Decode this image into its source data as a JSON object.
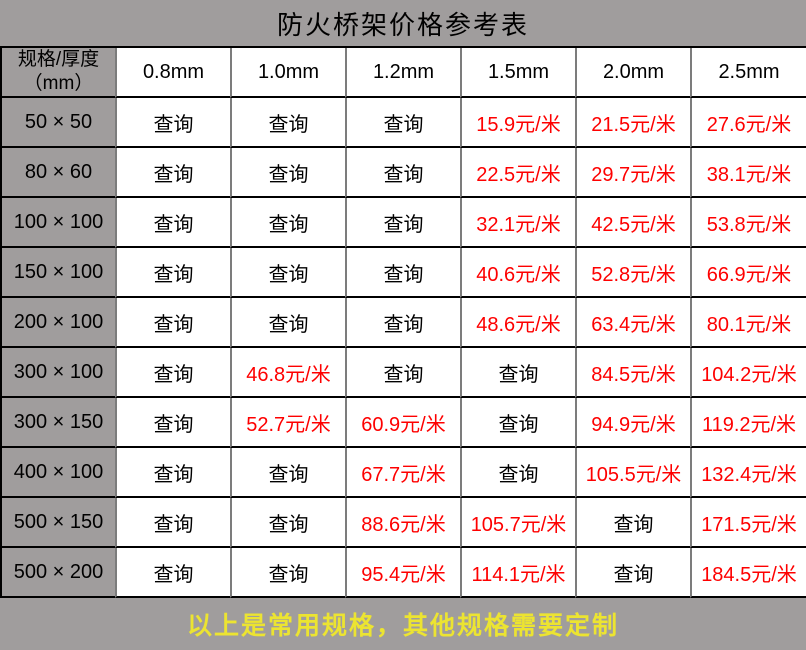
{
  "title": "防火桥架价格参考表",
  "footer_note": "以上是常用规格，其他规格需要定制",
  "chart_data": {
    "type": "table",
    "corner_header": "规格/厚度\n（mm）",
    "columns": [
      "0.8mm",
      "1.0mm",
      "1.2mm",
      "1.5mm",
      "2.0mm",
      "2.5mm"
    ],
    "query_label": "查询",
    "price_unit": "元/米",
    "rows": [
      {
        "spec": "50 × 50",
        "cells": [
          "查询",
          "查询",
          "查询",
          "15.9元/米",
          "21.5元/米",
          "27.6元/米"
        ]
      },
      {
        "spec": "80 × 60",
        "cells": [
          "查询",
          "查询",
          "查询",
          "22.5元/米",
          "29.7元/米",
          "38.1元/米"
        ]
      },
      {
        "spec": "100 × 100",
        "cells": [
          "查询",
          "查询",
          "查询",
          "32.1元/米",
          "42.5元/米",
          "53.8元/米"
        ]
      },
      {
        "spec": "150 × 100",
        "cells": [
          "查询",
          "查询",
          "查询",
          "40.6元/米",
          "52.8元/米",
          "66.9元/米"
        ]
      },
      {
        "spec": "200 × 100",
        "cells": [
          "查询",
          "查询",
          "查询",
          "48.6元/米",
          "63.4元/米",
          "80.1元/米"
        ]
      },
      {
        "spec": "300 × 100",
        "cells": [
          "查询",
          "46.8元/米",
          "查询",
          "查询",
          "84.5元/米",
          "104.2元/米"
        ]
      },
      {
        "spec": "300 × 150",
        "cells": [
          "查询",
          "52.7元/米",
          "60.9元/米",
          "查询",
          "94.9元/米",
          "119.2元/米"
        ]
      },
      {
        "spec": "400 × 100",
        "cells": [
          "查询",
          "查询",
          "67.7元/米",
          "查询",
          "105.5元/米",
          "132.4元/米"
        ]
      },
      {
        "spec": "500 × 150",
        "cells": [
          "查询",
          "查询",
          "88.6元/米",
          "105.7元/米",
          "查询",
          "171.5元/米"
        ]
      },
      {
        "spec": "500 × 200",
        "cells": [
          "查询",
          "查询",
          "95.4元/米",
          "114.1元/米",
          "查询",
          "184.5元/米"
        ]
      }
    ]
  },
  "colors": {
    "background_gray": "#a09d9d",
    "cell_white": "#ffffff",
    "grid_line_black": "#000000",
    "grid_line_gray": "#7c7c7c",
    "price_red": "#fe0000",
    "note_yellow": "#ece431",
    "text_black": "#000000"
  }
}
